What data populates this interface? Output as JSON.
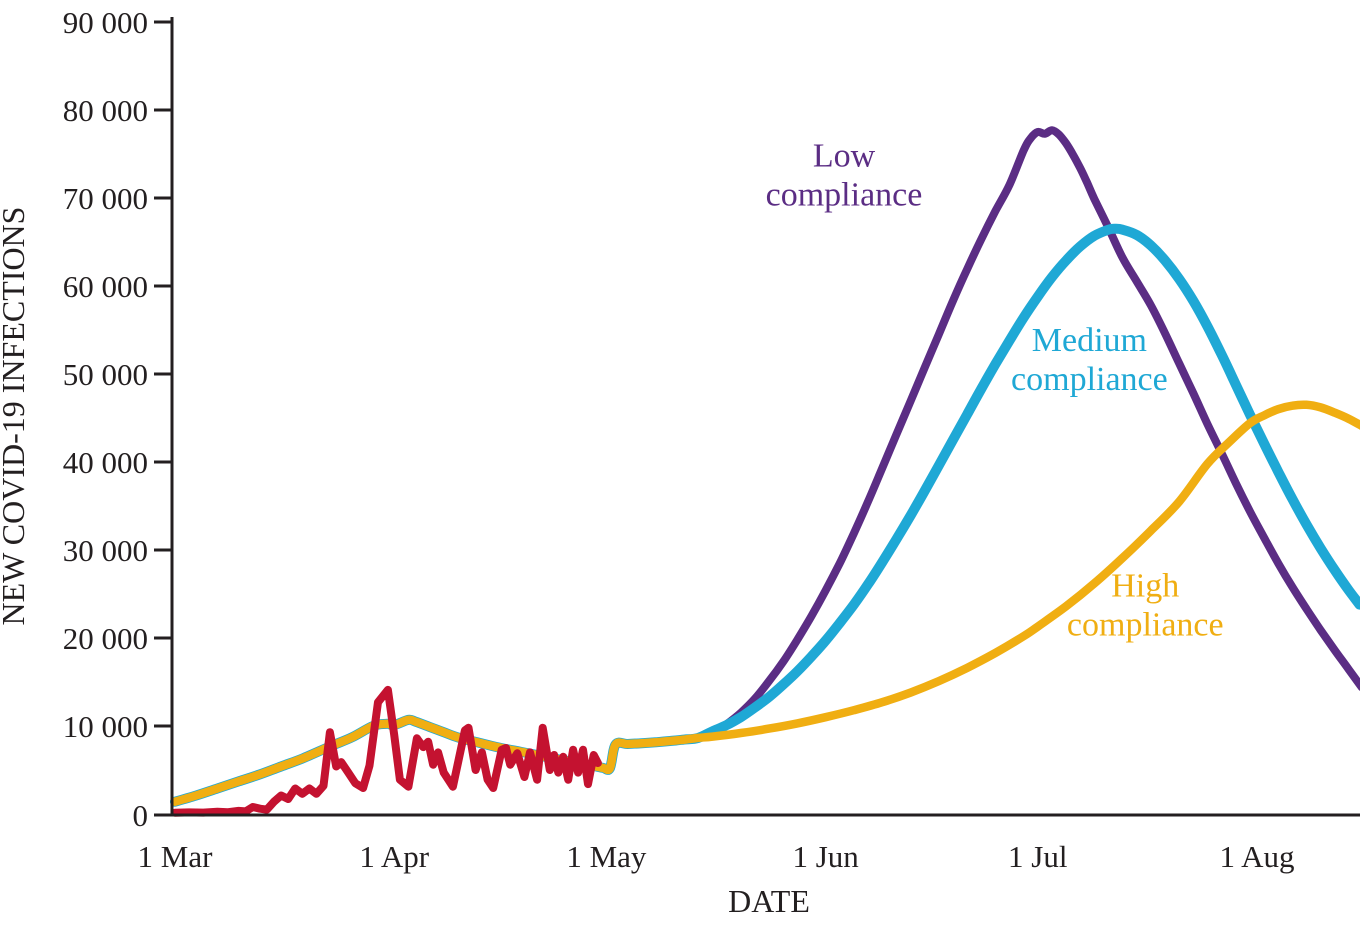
{
  "figure": {
    "background": "#ffffff",
    "axis_color": "#231f20"
  },
  "chart_data": {
    "type": "line",
    "title": "",
    "xlabel": "DATE",
    "ylabel": "NEW COVID-19 INFECTIONS",
    "grid": false,
    "legend_position": "inline-annotations",
    "ylim": [
      0,
      90000
    ],
    "x_unit": "days since 1 Mar",
    "xlim_days": [
      0,
      167.8
    ],
    "y_ticks": [
      {
        "value": 0,
        "label": "0"
      },
      {
        "value": 10000,
        "label": "10 000"
      },
      {
        "value": 20000,
        "label": "20 000"
      },
      {
        "value": 30000,
        "label": "30 000"
      },
      {
        "value": 40000,
        "label": "40 000"
      },
      {
        "value": 50000,
        "label": "50 000"
      },
      {
        "value": 60000,
        "label": "60 000"
      },
      {
        "value": 70000,
        "label": "70 000"
      },
      {
        "value": 80000,
        "label": "80 000"
      },
      {
        "value": 90000,
        "label": "90 000"
      }
    ],
    "x_ticks": [
      {
        "day": 0,
        "label": "1 Mar"
      },
      {
        "day": 31,
        "label": "1 Apr"
      },
      {
        "day": 61,
        "label": "1 May"
      },
      {
        "day": 92,
        "label": "1 Jun"
      },
      {
        "day": 122,
        "label": "1 Jul"
      },
      {
        "day": 153,
        "label": "1 Aug"
      }
    ],
    "shared_early_points": [
      [
        0,
        1400
      ],
      [
        3,
        2100
      ],
      [
        6,
        2900
      ],
      [
        9,
        3700
      ],
      [
        12,
        4500
      ],
      [
        15,
        5400
      ],
      [
        18,
        6300
      ],
      [
        22,
        7700
      ],
      [
        25,
        8700
      ],
      [
        28,
        10000
      ],
      [
        30,
        10250
      ],
      [
        31,
        10100
      ],
      [
        33,
        10700
      ],
      [
        34,
        10500
      ],
      [
        36,
        9900
      ],
      [
        38,
        9300
      ],
      [
        40,
        8700
      ],
      [
        43,
        8100
      ],
      [
        45,
        7700
      ],
      [
        48,
        7200
      ],
      [
        50,
        6900
      ],
      [
        53,
        6400
      ],
      [
        55,
        6100
      ],
      [
        57,
        5800
      ],
      [
        59,
        5500
      ],
      [
        60.5,
        5250
      ],
      [
        61.5,
        5200
      ],
      [
        62.3,
        7900
      ],
      [
        64,
        7950
      ],
      [
        66,
        8050
      ],
      [
        68,
        8150
      ],
      [
        70,
        8300
      ],
      [
        72,
        8450
      ],
      [
        74,
        8650
      ]
    ],
    "series": [
      {
        "id": "low-compliance",
        "name": "Low compliance",
        "color": "#5b2d84",
        "stroke_width": 8,
        "smooth": true,
        "peak": {
          "day": 124,
          "value": 77700
        },
        "annotation": {
          "lines": [
            "Low",
            "compliance"
          ],
          "anchor_day": 94.6,
          "anchor_value": 73600
        },
        "points": [
          [
            76,
            9100
          ],
          [
            78,
            10200
          ],
          [
            80,
            11500
          ],
          [
            82,
            13100
          ],
          [
            84,
            15100
          ],
          [
            86,
            17300
          ],
          [
            88,
            19800
          ],
          [
            90,
            22500
          ],
          [
            92,
            25400
          ],
          [
            94,
            28500
          ],
          [
            96,
            31900
          ],
          [
            98,
            35500
          ],
          [
            100,
            39300
          ],
          [
            102,
            43100
          ],
          [
            104,
            46900
          ],
          [
            106,
            50700
          ],
          [
            108,
            54500
          ],
          [
            110,
            58300
          ],
          [
            112,
            61900
          ],
          [
            114,
            65300
          ],
          [
            116,
            68500
          ],
          [
            118,
            71500
          ],
          [
            120,
            75400
          ],
          [
            121,
            76800
          ],
          [
            122,
            77500
          ],
          [
            123,
            77300
          ],
          [
            124,
            77700
          ],
          [
            125,
            77200
          ],
          [
            126,
            76200
          ],
          [
            127,
            74900
          ],
          [
            128,
            73400
          ],
          [
            129,
            71700
          ],
          [
            130,
            69900
          ],
          [
            132,
            66600
          ],
          [
            134,
            63200
          ],
          [
            136,
            60500
          ],
          [
            138,
            57800
          ],
          [
            140,
            54600
          ],
          [
            142,
            51200
          ],
          [
            144,
            47800
          ],
          [
            146,
            44300
          ],
          [
            148,
            41000
          ],
          [
            150,
            37600
          ],
          [
            152,
            34400
          ],
          [
            154,
            31400
          ],
          [
            156,
            28500
          ],
          [
            158,
            25800
          ],
          [
            160,
            23300
          ],
          [
            162,
            20900
          ],
          [
            164,
            18600
          ],
          [
            166,
            16400
          ],
          [
            167.8,
            14400
          ]
        ]
      },
      {
        "id": "medium-compliance",
        "name": "Medium compliance",
        "color": "#1fa8d5",
        "stroke_width": 10,
        "smooth": true,
        "peak": {
          "day": 133,
          "value": 66500
        },
        "annotation": {
          "lines": [
            "Medium",
            "compliance"
          ],
          "anchor_day": 129.3,
          "anchor_value": 52600
        },
        "points": [
          [
            76,
            9400
          ],
          [
            78,
            10100
          ],
          [
            80,
            11000
          ],
          [
            82,
            12100
          ],
          [
            84,
            13300
          ],
          [
            86,
            14700
          ],
          [
            88,
            16200
          ],
          [
            90,
            17900
          ],
          [
            92,
            19700
          ],
          [
            94,
            21700
          ],
          [
            96,
            23800
          ],
          [
            98,
            26100
          ],
          [
            100,
            28600
          ],
          [
            102,
            31200
          ],
          [
            104,
            33900
          ],
          [
            106,
            36700
          ],
          [
            108,
            39600
          ],
          [
            110,
            42500
          ],
          [
            112,
            45400
          ],
          [
            114,
            48300
          ],
          [
            116,
            51100
          ],
          [
            118,
            53800
          ],
          [
            120,
            56400
          ],
          [
            122,
            58800
          ],
          [
            124,
            61000
          ],
          [
            126,
            62900
          ],
          [
            128,
            64500
          ],
          [
            130,
            65700
          ],
          [
            132,
            66400
          ],
          [
            133,
            66500
          ],
          [
            134,
            66400
          ],
          [
            136,
            65800
          ],
          [
            138,
            64600
          ],
          [
            140,
            62900
          ],
          [
            142,
            60800
          ],
          [
            144,
            58300
          ],
          [
            146,
            55400
          ],
          [
            148,
            52200
          ],
          [
            150,
            48800
          ],
          [
            152,
            45400
          ],
          [
            154,
            42100
          ],
          [
            156,
            38900
          ],
          [
            158,
            35800
          ],
          [
            160,
            32900
          ],
          [
            162,
            30200
          ],
          [
            164,
            27700
          ],
          [
            166,
            25400
          ],
          [
            167.5,
            23800
          ]
        ]
      },
      {
        "id": "high-compliance",
        "name": "High compliance",
        "color": "#f0ae12",
        "stroke_width": 8.5,
        "smooth": true,
        "peak": {
          "day": 159,
          "value": 46500
        },
        "annotation": {
          "lines": [
            "High",
            "compliance"
          ],
          "anchor_day": 137.2,
          "anchor_value": 24700
        },
        "points": [
          [
            76,
            8800
          ],
          [
            80,
            9200
          ],
          [
            84,
            9700
          ],
          [
            88,
            10300
          ],
          [
            92,
            11000
          ],
          [
            96,
            11800
          ],
          [
            100,
            12700
          ],
          [
            104,
            13800
          ],
          [
            108,
            15100
          ],
          [
            112,
            16600
          ],
          [
            116,
            18300
          ],
          [
            120,
            20200
          ],
          [
            122,
            21300
          ],
          [
            126,
            23600
          ],
          [
            130,
            26200
          ],
          [
            134,
            29100
          ],
          [
            138,
            32200
          ],
          [
            142,
            35500
          ],
          [
            146,
            39800
          ],
          [
            149,
            42200
          ],
          [
            152,
            44400
          ],
          [
            154,
            45300
          ],
          [
            156,
            46000
          ],
          [
            158,
            46400
          ],
          [
            160,
            46500
          ],
          [
            162,
            46200
          ],
          [
            164,
            45600
          ],
          [
            166,
            44900
          ],
          [
            167.8,
            44100
          ]
        ]
      },
      {
        "id": "observed-cases",
        "name": "",
        "color": "#c41230",
        "stroke_width": 8,
        "smooth": false,
        "annotation": null,
        "points": [
          [
            0,
            150
          ],
          [
            2,
            180
          ],
          [
            4,
            160
          ],
          [
            6,
            260
          ],
          [
            7.5,
            200
          ],
          [
            9,
            350
          ],
          [
            10,
            300
          ],
          [
            11,
            800
          ],
          [
            12,
            600
          ],
          [
            13,
            500
          ],
          [
            14,
            1400
          ],
          [
            15,
            2100
          ],
          [
            16,
            1700
          ],
          [
            17,
            2900
          ],
          [
            18,
            2300
          ],
          [
            19,
            2900
          ],
          [
            20,
            2300
          ],
          [
            21,
            3200
          ],
          [
            21.9,
            9300
          ],
          [
            22.8,
            5400
          ],
          [
            23.5,
            5900
          ],
          [
            24.5,
            4700
          ],
          [
            25.5,
            3500
          ],
          [
            26.6,
            2950
          ],
          [
            27.5,
            5500
          ],
          [
            28.7,
            12700
          ],
          [
            30.1,
            14100
          ],
          [
            31,
            9000
          ],
          [
            31.8,
            3900
          ],
          [
            33,
            3100
          ],
          [
            34.2,
            8600
          ],
          [
            35.1,
            7600
          ],
          [
            35.8,
            8200
          ],
          [
            36.5,
            5600
          ],
          [
            37.2,
            7000
          ],
          [
            38,
            4700
          ],
          [
            39.3,
            3100
          ],
          [
            41,
            9500
          ],
          [
            41.5,
            9800
          ],
          [
            42.5,
            5000
          ],
          [
            43.4,
            7000
          ],
          [
            44.2,
            3900
          ],
          [
            45,
            2950
          ],
          [
            46.2,
            7300
          ],
          [
            46.8,
            7500
          ],
          [
            47.4,
            5600
          ],
          [
            48.4,
            6900
          ],
          [
            49.4,
            4200
          ],
          [
            50.2,
            7000
          ],
          [
            51.2,
            3900
          ],
          [
            52,
            9800
          ],
          [
            53,
            5000
          ],
          [
            53.6,
            6700
          ],
          [
            54.2,
            4700
          ],
          [
            54.9,
            6500
          ],
          [
            55.6,
            3900
          ],
          [
            56.3,
            7300
          ],
          [
            57,
            4700
          ],
          [
            57.7,
            7300
          ],
          [
            58.4,
            3400
          ],
          [
            59.2,
            6700
          ],
          [
            59.8,
            5800
          ]
        ]
      }
    ]
  }
}
